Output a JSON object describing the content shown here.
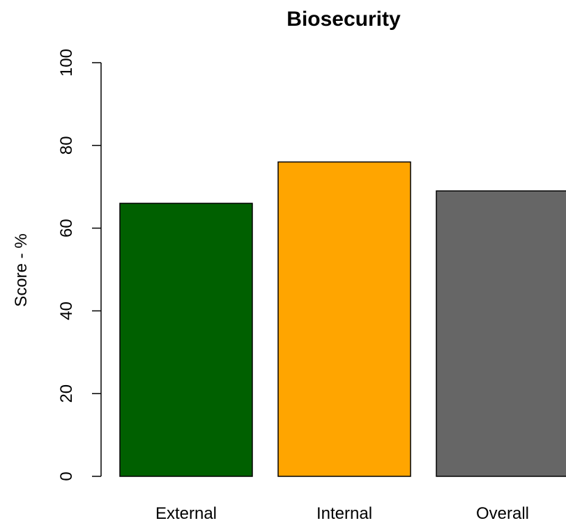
{
  "chart_data": {
    "type": "bar",
    "title": "Biosecurity",
    "xlabel": "",
    "ylabel": "Score - %",
    "ylim": [
      0,
      100
    ],
    "yticks": [
      0,
      20,
      40,
      60,
      80,
      100
    ],
    "categories": [
      "External",
      "Internal",
      "Overall"
    ],
    "values": [
      66,
      76,
      69
    ],
    "colors": [
      "#006000",
      "#ffa500",
      "#666666"
    ],
    "grid": false,
    "legend": "none"
  }
}
